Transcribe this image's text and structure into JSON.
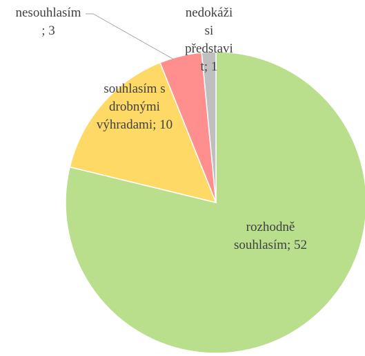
{
  "chart_data": {
    "type": "pie",
    "values": [
      52,
      10,
      3,
      1
    ],
    "value_labels": [
      "rozhodně souhlasím; 52",
      "souhlasím s drobnými výhradami; 10",
      "nesouhlasím; 3",
      "nedokáži si představit; 1"
    ],
    "colors": [
      "#b9de8c",
      "#ffd966",
      "#ff8f8f",
      "#bfbfbf"
    ]
  }
}
